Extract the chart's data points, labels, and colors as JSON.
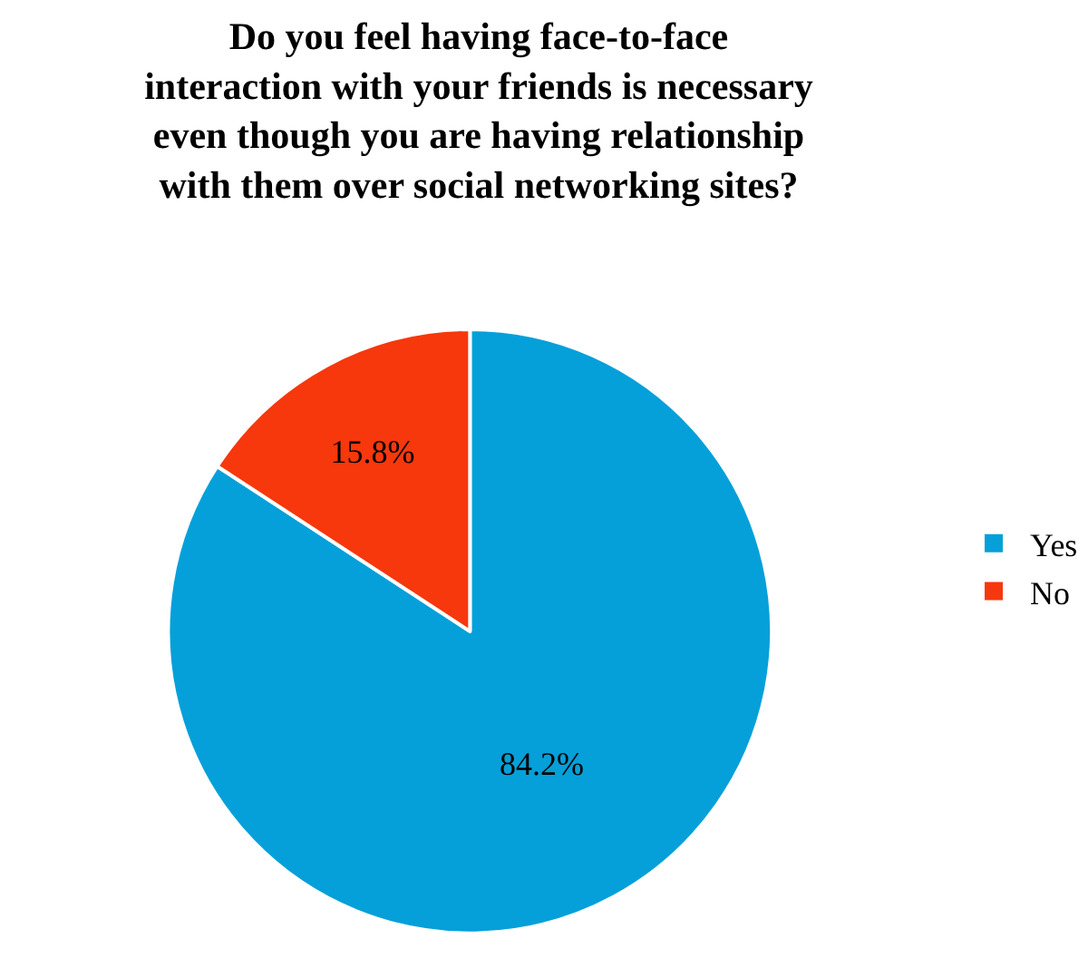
{
  "chart_data": {
    "type": "pie",
    "title": "Do you feel having face-to-face\ninteraction with your friends is necessary\neven though you are having relationship\nwith them over social networking sites?",
    "categories": [
      "Yes",
      "No"
    ],
    "values": [
      84.2,
      15.8
    ],
    "colors": [
      "#05a0d9",
      "#f6380c"
    ],
    "value_labels": [
      "84.2%",
      "15.8%"
    ],
    "legend": "right"
  }
}
